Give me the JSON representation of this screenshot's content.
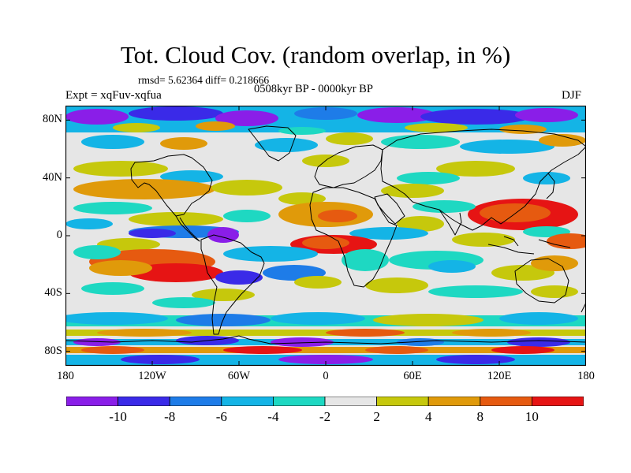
{
  "header": {
    "title": "Tot. Cloud Cov. (random overlap, in %)",
    "stats": "rmsd= 5.62364  diff= 0.218666",
    "period": "0508kyr BP - 0000kyr BP",
    "experiment": "Expt = xqFuv-xqfua",
    "season": "DJF"
  },
  "map": {
    "x_ticks": [
      "180",
      "120W",
      "60W",
      "0",
      "60E",
      "120E",
      "180"
    ],
    "y_ticks": [
      "80N",
      "40N",
      "0",
      "40S",
      "80S"
    ],
    "x_tick_lon": [
      -180,
      -120,
      -60,
      0,
      60,
      120,
      180
    ],
    "y_tick_lat": [
      80,
      40,
      0,
      -40,
      -80
    ],
    "lon_range": [
      -180,
      180
    ],
    "lat_range": [
      -90,
      90
    ],
    "projection": "cylindrical equidistant"
  },
  "colorbar": {
    "labels": [
      "-10",
      "-8",
      "-6",
      "-4",
      "-2",
      "2",
      "4",
      "8",
      "10"
    ],
    "colors": [
      "#8a1ee8",
      "#3a2ae8",
      "#1e7ce8",
      "#14b4e6",
      "#1ed8c2",
      "#e6e6e6",
      "#c6c80c",
      "#e09a0a",
      "#e65a10",
      "#e61414"
    ],
    "neutral_color": "#e6e6e6"
  }
}
